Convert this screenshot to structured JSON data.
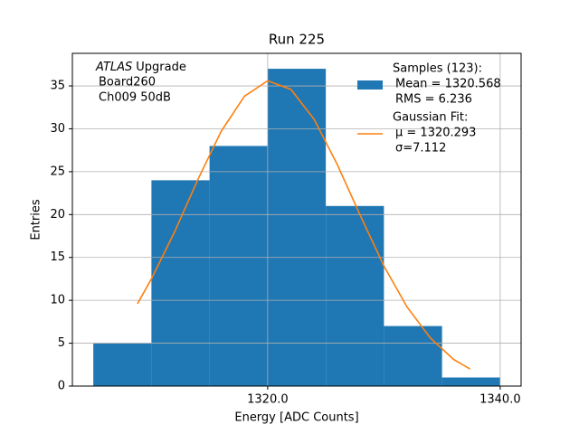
{
  "chart_data": {
    "type": "histogram",
    "title": "Run 225",
    "xlabel": "Energy [ADC Counts]",
    "ylabel": "Entries",
    "annotation": {
      "italic": "ATLAS",
      "text": "Upgrade",
      "lines": [
        "Board260",
        "Ch009 50dB"
      ]
    },
    "bins": [
      1305,
      1310,
      1315,
      1320,
      1325,
      1330,
      1335,
      1340
    ],
    "series": [
      {
        "name": [
          "Samples (123):",
          "Mean = 1320.568",
          "RMS = 6.236"
        ],
        "color": "#1f77b4",
        "values": [
          5,
          24,
          28,
          37,
          21,
          7,
          1
        ]
      }
    ],
    "fit": {
      "type": "line",
      "name": [
        "Gaussian Fit:",
        "μ = 1320.293",
        "σ=7.112"
      ],
      "color": "#ff7f0e",
      "x": [
        1308.8,
        1310,
        1312,
        1314,
        1316,
        1318,
        1320,
        1322,
        1324,
        1326,
        1328,
        1330,
        1332,
        1334,
        1336,
        1337.4
      ],
      "values": [
        9.6,
        12.5,
        18.0,
        24.1,
        29.7,
        33.8,
        35.6,
        34.6,
        31.1,
        25.8,
        19.8,
        14.0,
        9.2,
        5.6,
        3.1,
        2.0
      ]
    },
    "xlim": [
      1303.2,
      1341.8
    ],
    "ylim": [
      0,
      38.8
    ],
    "xticks": [
      {
        "value": 1320,
        "label": "1320.0"
      },
      {
        "value": 1340,
        "label": "1340.0"
      }
    ],
    "yticks": [
      0,
      5,
      10,
      15,
      20,
      25,
      30,
      35
    ],
    "grid": true,
    "legend": "upper right"
  }
}
